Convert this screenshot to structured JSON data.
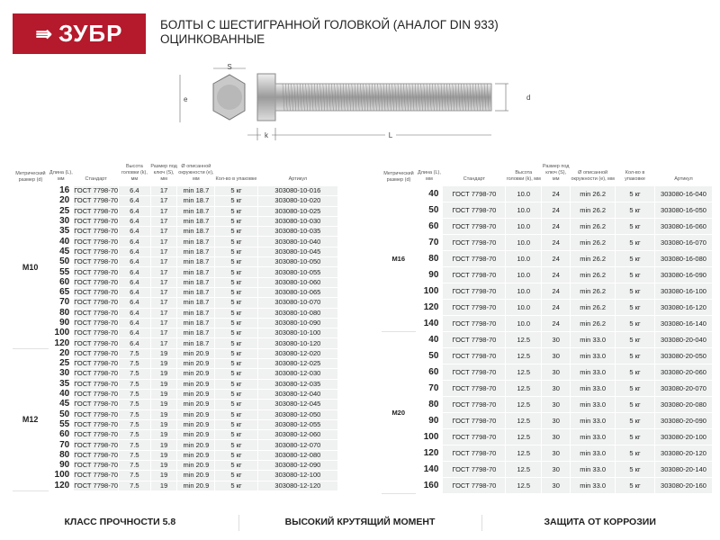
{
  "logo": {
    "text": "ЗУБР",
    "brand_color": "#b5192c",
    "icon": "arrow-right-icon"
  },
  "title": {
    "line1": "БОЛТЫ С ШЕСТИГРАННОЙ ГОЛОВКОЙ (АНАЛОГ DIN 933)",
    "line2": "ОЦИНКОВАННЫЕ"
  },
  "diagram": {
    "s": "S",
    "e": "e",
    "k": "k",
    "L": "L",
    "d": "d"
  },
  "headers": [
    "Метрический размер (d)",
    "Длина (L), мм",
    "Стандарт",
    "Высота головки (k), мм",
    "Размер под ключ (S), мм",
    "Ø описанной окружности (e), мм",
    "Кол-во в упаковке",
    "Артикул"
  ],
  "left_groups": [
    {
      "size": "M10",
      "rows": [
        [
          "16",
          "ГОСТ 7798-70",
          "6.4",
          "17",
          "min 18.7",
          "5 кг",
          "303080-10-016"
        ],
        [
          "20",
          "ГОСТ 7798-70",
          "6.4",
          "17",
          "min 18.7",
          "5 кг",
          "303080-10-020"
        ],
        [
          "25",
          "ГОСТ 7798-70",
          "6.4",
          "17",
          "min 18.7",
          "5 кг",
          "303080-10-025"
        ],
        [
          "30",
          "ГОСТ 7798-70",
          "6.4",
          "17",
          "min 18.7",
          "5 кг",
          "303080-10-030"
        ],
        [
          "35",
          "ГОСТ 7798-70",
          "6.4",
          "17",
          "min 18.7",
          "5 кг",
          "303080-10-035"
        ],
        [
          "40",
          "ГОСТ 7798-70",
          "6.4",
          "17",
          "min 18.7",
          "5 кг",
          "303080-10-040"
        ],
        [
          "45",
          "ГОСТ 7798-70",
          "6.4",
          "17",
          "min 18.7",
          "5 кг",
          "303080-10-045"
        ],
        [
          "50",
          "ГОСТ 7798-70",
          "6.4",
          "17",
          "min 18.7",
          "5 кг",
          "303080-10-050"
        ],
        [
          "55",
          "ГОСТ 7798-70",
          "6.4",
          "17",
          "min 18.7",
          "5 кг",
          "303080-10-055"
        ],
        [
          "60",
          "ГОСТ 7798-70",
          "6.4",
          "17",
          "min 18.7",
          "5 кг",
          "303080-10-060"
        ],
        [
          "65",
          "ГОСТ 7798-70",
          "6.4",
          "17",
          "min 18.7",
          "5 кг",
          "303080-10-065"
        ],
        [
          "70",
          "ГОСТ 7798-70",
          "6.4",
          "17",
          "min 18.7",
          "5 кг",
          "303080-10-070"
        ],
        [
          "80",
          "ГОСТ 7798-70",
          "6.4",
          "17",
          "min 18.7",
          "5 кг",
          "303080-10-080"
        ],
        [
          "90",
          "ГОСТ 7798-70",
          "6.4",
          "17",
          "min 18.7",
          "5 кг",
          "303080-10-090"
        ],
        [
          "100",
          "ГОСТ 7798-70",
          "6.4",
          "17",
          "min 18.7",
          "5 кг",
          "303080-10-100"
        ],
        [
          "120",
          "ГОСТ 7798-70",
          "6.4",
          "17",
          "min 18.7",
          "5 кг",
          "303080-10-120"
        ]
      ]
    },
    {
      "size": "M12",
      "rows": [
        [
          "20",
          "ГОСТ 7798-70",
          "7.5",
          "19",
          "min 20.9",
          "5 кг",
          "303080-12-020"
        ],
        [
          "25",
          "ГОСТ 7798-70",
          "7.5",
          "19",
          "min 20.9",
          "5 кг",
          "303080-12-025"
        ],
        [
          "30",
          "ГОСТ 7798-70",
          "7.5",
          "19",
          "min 20.9",
          "5 кг",
          "303080-12-030"
        ],
        [
          "35",
          "ГОСТ 7798-70",
          "7.5",
          "19",
          "min 20.9",
          "5 кг",
          "303080-12-035"
        ],
        [
          "40",
          "ГОСТ 7798-70",
          "7.5",
          "19",
          "min 20.9",
          "5 кг",
          "303080-12-040"
        ],
        [
          "45",
          "ГОСТ 7798-70",
          "7.5",
          "19",
          "min 20.9",
          "5 кг",
          "303080-12-045"
        ],
        [
          "50",
          "ГОСТ 7798-70",
          "7.5",
          "19",
          "min 20.9",
          "5 кг",
          "303080-12-050"
        ],
        [
          "55",
          "ГОСТ 7798-70",
          "7.5",
          "19",
          "min 20.9",
          "5 кг",
          "303080-12-055"
        ],
        [
          "60",
          "ГОСТ 7798-70",
          "7.5",
          "19",
          "min 20.9",
          "5 кг",
          "303080-12-060"
        ],
        [
          "70",
          "ГОСТ 7798-70",
          "7.5",
          "19",
          "min 20.9",
          "5 кг",
          "303080-12-070"
        ],
        [
          "80",
          "ГОСТ 7798-70",
          "7.5",
          "19",
          "min 20.9",
          "5 кг",
          "303080-12-080"
        ],
        [
          "90",
          "ГОСТ 7798-70",
          "7.5",
          "19",
          "min 20.9",
          "5 кг",
          "303080-12-090"
        ],
        [
          "100",
          "ГОСТ 7798-70",
          "7.5",
          "19",
          "min 20.9",
          "5 кг",
          "303080-12-100"
        ],
        [
          "120",
          "ГОСТ 7798-70",
          "7.5",
          "19",
          "min 20.9",
          "5 кг",
          "303080-12-120"
        ]
      ]
    }
  ],
  "right_groups": [
    {
      "size": "M16",
      "rows": [
        [
          "40",
          "ГОСТ 7798-70",
          "10.0",
          "24",
          "min 26.2",
          "5 кг",
          "303080-16-040"
        ],
        [
          "50",
          "ГОСТ 7798-70",
          "10.0",
          "24",
          "min 26.2",
          "5 кг",
          "303080-16-050"
        ],
        [
          "60",
          "ГОСТ 7798-70",
          "10.0",
          "24",
          "min 26.2",
          "5 кг",
          "303080-16-060"
        ],
        [
          "70",
          "ГОСТ 7798-70",
          "10.0",
          "24",
          "min 26.2",
          "5 кг",
          "303080-16-070"
        ],
        [
          "80",
          "ГОСТ 7798-70",
          "10.0",
          "24",
          "min 26.2",
          "5 кг",
          "303080-16-080"
        ],
        [
          "90",
          "ГОСТ 7798-70",
          "10.0",
          "24",
          "min 26.2",
          "5 кг",
          "303080-16-090"
        ],
        [
          "100",
          "ГОСТ 7798-70",
          "10.0",
          "24",
          "min 26.2",
          "5 кг",
          "303080-16-100"
        ],
        [
          "120",
          "ГОСТ 7798-70",
          "10.0",
          "24",
          "min 26.2",
          "5 кг",
          "303080-16-120"
        ],
        [
          "140",
          "ГОСТ 7798-70",
          "10.0",
          "24",
          "min 26.2",
          "5 кг",
          "303080-16-140"
        ]
      ]
    },
    {
      "size": "M20",
      "rows": [
        [
          "40",
          "ГОСТ 7798-70",
          "12.5",
          "30",
          "min 33.0",
          "5 кг",
          "303080-20-040"
        ],
        [
          "50",
          "ГОСТ 7798-70",
          "12.5",
          "30",
          "min 33.0",
          "5 кг",
          "303080-20-050"
        ],
        [
          "60",
          "ГОСТ 7798-70",
          "12.5",
          "30",
          "min 33.0",
          "5 кг",
          "303080-20-060"
        ],
        [
          "70",
          "ГОСТ 7798-70",
          "12.5",
          "30",
          "min 33.0",
          "5 кг",
          "303080-20-070"
        ],
        [
          "80",
          "ГОСТ 7798-70",
          "12.5",
          "30",
          "min 33.0",
          "5 кг",
          "303080-20-080"
        ],
        [
          "90",
          "ГОСТ 7798-70",
          "12.5",
          "30",
          "min 33.0",
          "5 кг",
          "303080-20-090"
        ],
        [
          "100",
          "ГОСТ 7798-70",
          "12.5",
          "30",
          "min 33.0",
          "5 кг",
          "303080-20-100"
        ],
        [
          "120",
          "ГОСТ 7798-70",
          "12.5",
          "30",
          "min 33.0",
          "5 кг",
          "303080-20-120"
        ],
        [
          "140",
          "ГОСТ 7798-70",
          "12.5",
          "30",
          "min 33.0",
          "5 кг",
          "303080-20-140"
        ],
        [
          "160",
          "ГОСТ 7798-70",
          "12.5",
          "30",
          "min 33.0",
          "5 кг",
          "303080-20-160"
        ]
      ]
    }
  ],
  "footer": [
    "КЛАСС ПРОЧНОСТИ 5.8",
    "ВЫСОКИЙ КРУТЯЩИЙ МОМЕНТ",
    "ЗАЩИТА ОТ КОРРОЗИИ"
  ]
}
